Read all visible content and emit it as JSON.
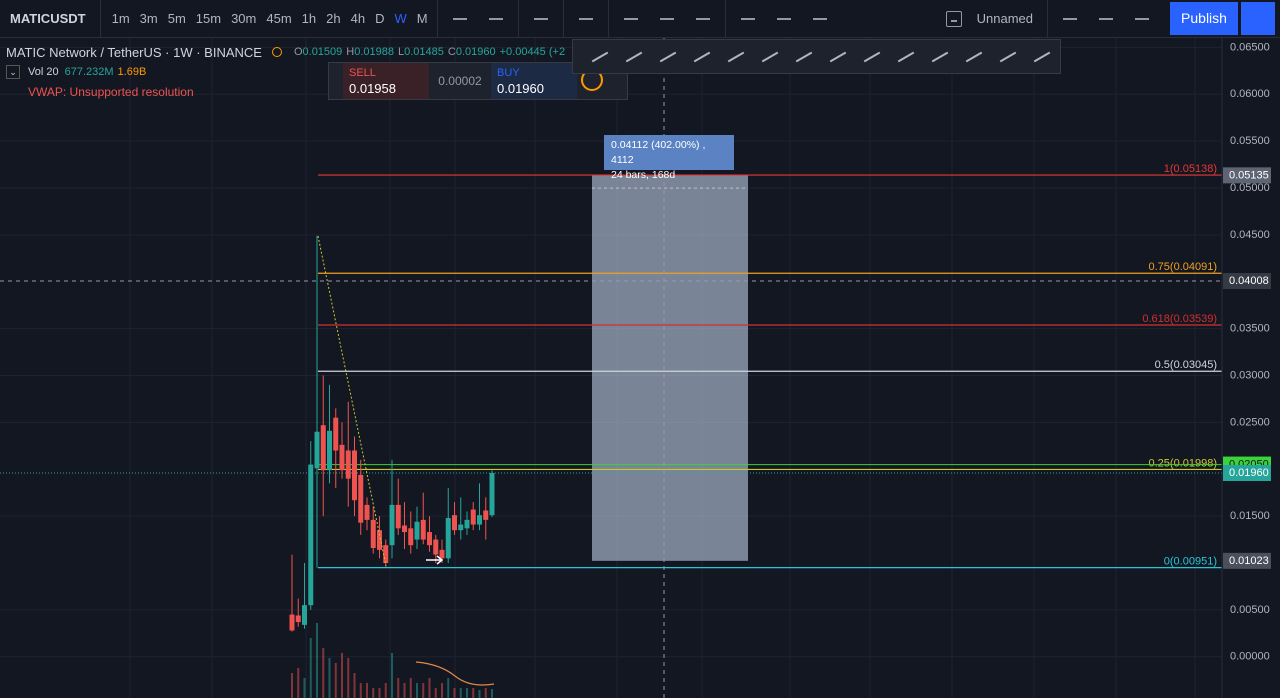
{
  "toolbar": {
    "symbol": "MATICUSDT",
    "intervals": [
      "1m",
      "3m",
      "5m",
      "15m",
      "30m",
      "45m",
      "1h",
      "2h",
      "4h",
      "D",
      "W",
      "M"
    ],
    "active_interval": "W",
    "layout_name": "Unnamed",
    "publish": "Publish"
  },
  "legend": {
    "title": "MATIC Network / TetherUS · 1W · BINANCE",
    "ohlc": [
      {
        "label": "O",
        "value": "0.01509"
      },
      {
        "label": "H",
        "value": "0.01988"
      },
      {
        "label": "L",
        "value": "0.01485"
      },
      {
        "label": "C",
        "value": "0.01960"
      }
    ],
    "change": "+0.00445 (+2",
    "volume": {
      "label": "Vol 20",
      "value": "677.232M",
      "ma": "1.69B"
    },
    "vwap": "VWAP: Unsupported resolution"
  },
  "trade_panel": {
    "sell_label": "SELL",
    "sell_price": "0.01958",
    "spread": "0.00002",
    "buy_label": "BUY",
    "buy_price": "0.01960"
  },
  "measure": {
    "line1": "0.04112 (402.00%) , 4112",
    "line2": "24 bars, 168d"
  },
  "chart": {
    "ylim": [
      -0.0044,
      0.066
    ],
    "yticks": [
      {
        "value": 0.065,
        "label": "0.06500"
      },
      {
        "value": 0.06,
        "label": "0.06000"
      },
      {
        "value": 0.055,
        "label": "0.05500"
      },
      {
        "value": 0.05,
        "label": "0.05000"
      },
      {
        "value": 0.045,
        "label": "0.04500"
      },
      {
        "value": 0.035,
        "label": "0.03500"
      },
      {
        "value": 0.03,
        "label": "0.03000"
      },
      {
        "value": 0.025,
        "label": "0.02500"
      },
      {
        "value": 0.015,
        "label": "0.01500"
      },
      {
        "value": 0.005,
        "label": "0.00500"
      },
      {
        "value": 0,
        "label": "0.00000"
      }
    ],
    "fib_levels": [
      {
        "label": "1(0.05138)",
        "value": 0.05138,
        "color": "#e53935"
      },
      {
        "label": "0.75(0.04091)",
        "value": 0.04091,
        "color": "#f0a020"
      },
      {
        "label": "0.618(0.03539)",
        "value": 0.03539,
        "color": "#d32f2f"
      },
      {
        "label": "0.5(0.03045)",
        "value": 0.03045,
        "color": "#d1d4dc"
      },
      {
        "label": "0.25(0.01998)",
        "value": 0.01998,
        "color": "#c8c832"
      },
      {
        "label": "0(0.00951)",
        "value": 0.00951,
        "color": "#26c6da"
      }
    ],
    "price_tags": [
      {
        "label": "0.05135",
        "value": 0.05135,
        "color": "#5d6473"
      },
      {
        "label": "0.04008",
        "value": 0.04008,
        "color": "#363a45"
      },
      {
        "label": "0.02050",
        "value": 0.0205,
        "color": "#3ad33a"
      },
      {
        "label": "0.01960",
        "value": 0.0196,
        "color": "#26a69a"
      },
      {
        "label": "0.01023",
        "value": 0.01023,
        "color": "#4a4f5c"
      }
    ],
    "up_color": "#26a69a",
    "down_color": "#ef5350",
    "candles": [
      {
        "o": 0.0045,
        "h": 0.0109,
        "l": 0.0027,
        "c": 0.0028
      },
      {
        "o": 0.0044,
        "h": 0.0062,
        "l": 0.0032,
        "c": 0.0037
      },
      {
        "o": 0.0034,
        "h": 0.01,
        "l": 0.003,
        "c": 0.0055
      },
      {
        "o": 0.0055,
        "h": 0.023,
        "l": 0.005,
        "c": 0.0205
      },
      {
        "o": 0.0201,
        "h": 0.0449,
        "l": 0.0095,
        "c": 0.024
      },
      {
        "o": 0.0247,
        "h": 0.03,
        "l": 0.015,
        "c": 0.0199
      },
      {
        "o": 0.0199,
        "h": 0.029,
        "l": 0.0185,
        "c": 0.0241
      },
      {
        "o": 0.0255,
        "h": 0.0265,
        "l": 0.018,
        "c": 0.022
      },
      {
        "o": 0.0226,
        "h": 0.025,
        "l": 0.019,
        "c": 0.0199
      },
      {
        "o": 0.022,
        "h": 0.0272,
        "l": 0.016,
        "c": 0.019
      },
      {
        "o": 0.022,
        "h": 0.0235,
        "l": 0.015,
        "c": 0.0167
      },
      {
        "o": 0.0194,
        "h": 0.021,
        "l": 0.013,
        "c": 0.0143
      },
      {
        "o": 0.0162,
        "h": 0.017,
        "l": 0.0135,
        "c": 0.0146
      },
      {
        "o": 0.0146,
        "h": 0.016,
        "l": 0.011,
        "c": 0.0116
      },
      {
        "o": 0.0135,
        "h": 0.015,
        "l": 0.0105,
        "c": 0.0114
      },
      {
        "o": 0.0119,
        "h": 0.0125,
        "l": 0.0096,
        "c": 0.01
      },
      {
        "o": 0.0119,
        "h": 0.021,
        "l": 0.0105,
        "c": 0.0162
      },
      {
        "o": 0.0162,
        "h": 0.019,
        "l": 0.013,
        "c": 0.0137
      },
      {
        "o": 0.014,
        "h": 0.0165,
        "l": 0.0115,
        "c": 0.0133
      },
      {
        "o": 0.0137,
        "h": 0.0155,
        "l": 0.011,
        "c": 0.0119
      },
      {
        "o": 0.0125,
        "h": 0.016,
        "l": 0.0115,
        "c": 0.0144
      },
      {
        "o": 0.0146,
        "h": 0.0175,
        "l": 0.012,
        "c": 0.0125
      },
      {
        "o": 0.0133,
        "h": 0.015,
        "l": 0.0112,
        "c": 0.0119
      },
      {
        "o": 0.0125,
        "h": 0.013,
        "l": 0.01,
        "c": 0.0109
      },
      {
        "o": 0.0114,
        "h": 0.0125,
        "l": 0.01,
        "c": 0.0105
      },
      {
        "o": 0.0105,
        "h": 0.018,
        "l": 0.01,
        "c": 0.0148
      },
      {
        "o": 0.0151,
        "h": 0.0165,
        "l": 0.013,
        "c": 0.0135
      },
      {
        "o": 0.0135,
        "h": 0.017,
        "l": 0.0125,
        "c": 0.0141
      },
      {
        "o": 0.0137,
        "h": 0.0155,
        "l": 0.013,
        "c": 0.0146
      },
      {
        "o": 0.0157,
        "h": 0.0165,
        "l": 0.0135,
        "c": 0.0141
      },
      {
        "o": 0.0141,
        "h": 0.0185,
        "l": 0.0135,
        "c": 0.0151
      },
      {
        "o": 0.0156,
        "h": 0.017,
        "l": 0.0125,
        "c": 0.0146
      },
      {
        "o": 0.0151,
        "h": 0.0199,
        "l": 0.0149,
        "c": 0.0196
      }
    ],
    "volumes": [
      750,
      900,
      600,
      1800,
      2250,
      1500,
      1200,
      1050,
      1350,
      1200,
      750,
      450,
      450,
      300,
      300,
      450,
      1350,
      600,
      450,
      600,
      450,
      450,
      600,
      300,
      450,
      600,
      300,
      300,
      300,
      300,
      240,
      300,
      270
    ]
  }
}
